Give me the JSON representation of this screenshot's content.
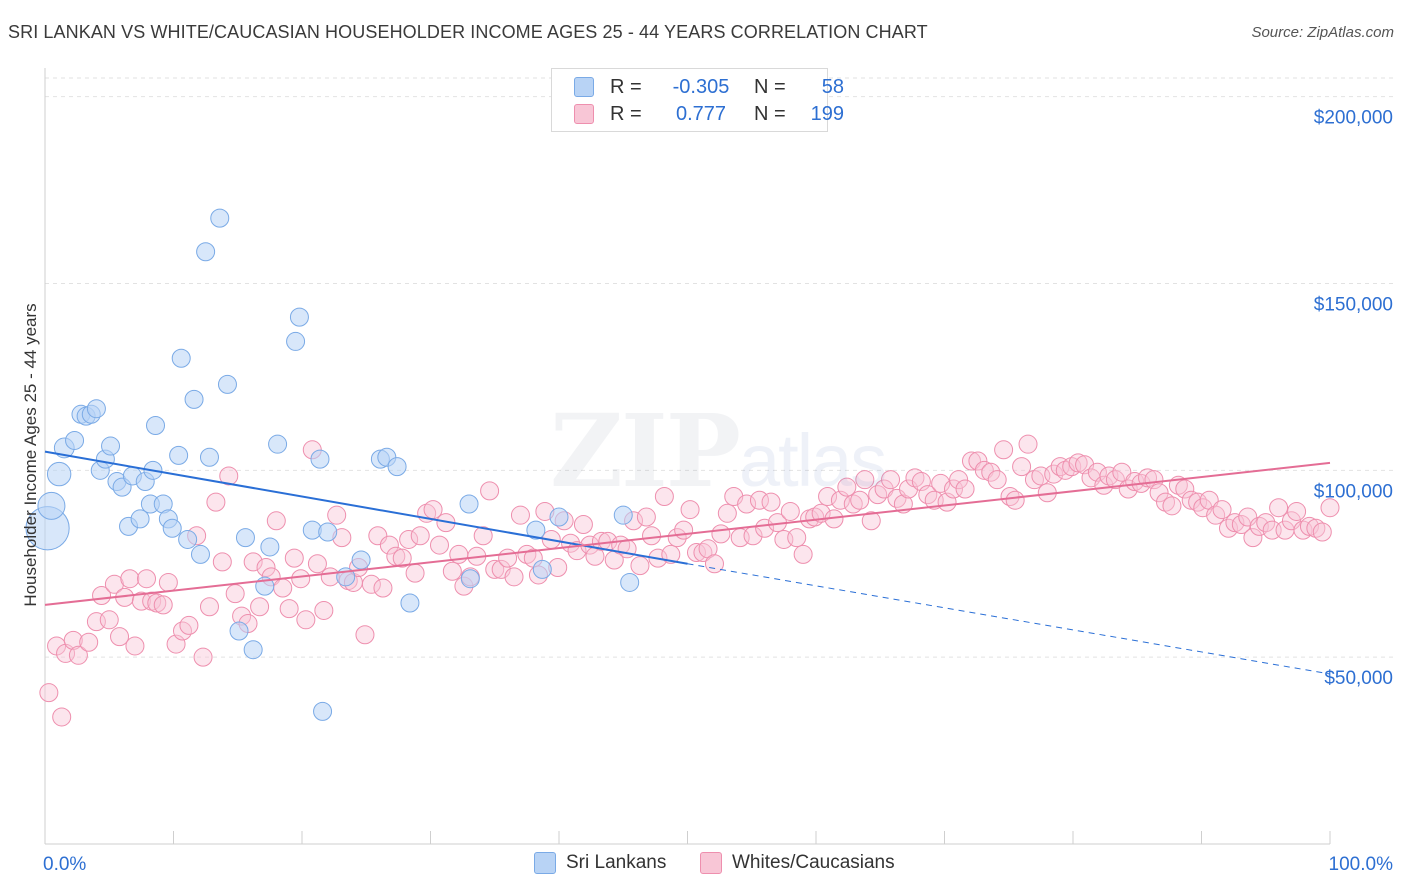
{
  "title": "SRI LANKAN VS WHITE/CAUCASIAN HOUSEHOLDER INCOME AGES 25 - 44 YEARS CORRELATION CHART",
  "source": "Source: ZipAtlas.com",
  "watermark": {
    "main": "ZIP",
    "sub": "atlas"
  },
  "legend": {
    "rows": [
      {
        "r_label": "R =",
        "r_value": "-0.305",
        "n_label": "N =",
        "n_value": "58"
      },
      {
        "r_label": "R =",
        "r_value": "0.777",
        "n_label": "N =",
        "n_value": "199"
      }
    ]
  },
  "bottom_legend": {
    "series1": "Sri Lankans",
    "series2": "Whites/Caucasians"
  },
  "colors": {
    "blue_fill": "#b8d3f5",
    "blue_stroke": "#7aaae6",
    "blue_line": "#2a6fd6",
    "pink_fill": "#f8c6d6",
    "pink_stroke": "#ee8fae",
    "pink_line": "#e46d95",
    "axis_text": "#2d6fd2",
    "grid": "#e2e2e2"
  },
  "chart_data": {
    "type": "scatter",
    "title": "SRI LANKAN VS WHITE/CAUCASIAN HOUSEHOLDER INCOME AGES 25 - 44 YEARS CORRELATION CHART",
    "xlabel": "",
    "ylabel": "Householder Income Ages 25 - 44 years",
    "x_tick_labels": [
      "0.0%",
      "100.0%"
    ],
    "y_tick_labels": [
      "$50,000",
      "$100,000",
      "$150,000",
      "$200,000"
    ],
    "y_ticks": [
      50000,
      100000,
      150000,
      200000
    ],
    "xlim": [
      0,
      100
    ],
    "ylim": [
      0,
      205000
    ],
    "grid": true,
    "legend_position": "top-center",
    "series": [
      {
        "name": "Sri Lankans",
        "r": -0.305,
        "n": 58,
        "trend": {
          "x0": 0,
          "y0": 105000,
          "x1": 50,
          "y1": 75000,
          "dashed_to_x": 100,
          "dashed_to_y": 45500
        },
        "points": [
          [
            0.2,
            84500,
            2.4
          ],
          [
            0.5,
            90500,
            1.5
          ],
          [
            1.1,
            99000,
            1.3
          ],
          [
            1.5,
            106000,
            1.1
          ],
          [
            2.3,
            108000,
            1.0
          ],
          [
            2.8,
            115000,
            1.0
          ],
          [
            3.2,
            114500,
            1.0
          ],
          [
            3.6,
            115000,
            1.0
          ],
          [
            4.0,
            116500,
            1.0
          ],
          [
            4.3,
            100000,
            1.0
          ],
          [
            4.7,
            103000,
            1.0
          ],
          [
            5.1,
            106500,
            1.0
          ],
          [
            5.6,
            97000,
            1.0
          ],
          [
            6.0,
            95500,
            1.0
          ],
          [
            6.5,
            85000,
            1.0
          ],
          [
            6.8,
            98500,
            1.0
          ],
          [
            7.4,
            87000,
            1.0
          ],
          [
            7.8,
            97000,
            1.0
          ],
          [
            8.2,
            91000,
            1.0
          ],
          [
            8.4,
            100000,
            1.0
          ],
          [
            8.6,
            112000,
            1.0
          ],
          [
            9.2,
            91000,
            1.0
          ],
          [
            9.6,
            87000,
            1.0
          ],
          [
            9.9,
            84500,
            1.0
          ],
          [
            10.4,
            104000,
            1.0
          ],
          [
            10.6,
            130000,
            1.0
          ],
          [
            11.1,
            81500,
            1.0
          ],
          [
            11.6,
            119000,
            1.0
          ],
          [
            12.1,
            77500,
            1.0
          ],
          [
            12.5,
            158500,
            1.0
          ],
          [
            12.8,
            103500,
            1.0
          ],
          [
            13.6,
            167500,
            1.0
          ],
          [
            14.2,
            123000,
            1.0
          ],
          [
            15.1,
            57000,
            1.0
          ],
          [
            15.6,
            82000,
            1.0
          ],
          [
            16.2,
            52000,
            1.0
          ],
          [
            17.1,
            69000,
            1.0
          ],
          [
            17.5,
            79500,
            1.0
          ],
          [
            18.1,
            107000,
            1.0
          ],
          [
            19.5,
            134500,
            1.0
          ],
          [
            19.8,
            141000,
            1.0
          ],
          [
            20.8,
            84000,
            1.0
          ],
          [
            21.4,
            103000,
            1.0
          ],
          [
            21.6,
            35500,
            1.0
          ],
          [
            23.4,
            71500,
            1.0
          ],
          [
            24.6,
            76000,
            1.0
          ],
          [
            26.1,
            103000,
            1.0
          ],
          [
            26.6,
            103500,
            1.0
          ],
          [
            27.4,
            101000,
            1.0
          ],
          [
            28.4,
            64500,
            1.0
          ],
          [
            33.0,
            91000,
            1.0
          ],
          [
            33.1,
            71000,
            1.0
          ],
          [
            38.2,
            84000,
            1.0
          ],
          [
            38.7,
            73500,
            1.0
          ],
          [
            40.0,
            87500,
            1.0
          ],
          [
            45.0,
            88000,
            1.0
          ],
          [
            45.5,
            70000,
            1.0
          ],
          [
            22.0,
            83500,
            1.0
          ]
        ]
      },
      {
        "name": "Whites/Caucasians",
        "r": 0.777,
        "n": 199,
        "trend": {
          "x0": 0,
          "y0": 64000,
          "x1": 100,
          "y1": 102000
        },
        "points": [
          [
            0.3,
            40500
          ],
          [
            0.9,
            53000
          ],
          [
            1.3,
            34000
          ],
          [
            1.6,
            51000
          ],
          [
            2.2,
            54500
          ],
          [
            2.6,
            50500
          ],
          [
            3.4,
            54000
          ],
          [
            4.0,
            59500
          ],
          [
            4.4,
            66500
          ],
          [
            5.0,
            60000
          ],
          [
            5.4,
            69500
          ],
          [
            5.8,
            55500
          ],
          [
            6.2,
            66000
          ],
          [
            6.6,
            71000
          ],
          [
            7.0,
            53000
          ],
          [
            7.5,
            65000
          ],
          [
            7.9,
            71000
          ],
          [
            8.3,
            65000
          ],
          [
            8.7,
            64500
          ],
          [
            9.2,
            64000
          ],
          [
            9.6,
            70000
          ],
          [
            10.2,
            53500
          ],
          [
            10.7,
            57000
          ],
          [
            11.2,
            58500
          ],
          [
            11.8,
            82500
          ],
          [
            12.3,
            50000
          ],
          [
            12.8,
            63500
          ],
          [
            13.3,
            91500
          ],
          [
            13.8,
            75500
          ],
          [
            14.3,
            98500
          ],
          [
            14.8,
            67000
          ],
          [
            15.3,
            61000
          ],
          [
            15.8,
            59000
          ],
          [
            16.2,
            75500
          ],
          [
            16.7,
            63500
          ],
          [
            17.2,
            74000
          ],
          [
            17.6,
            71500
          ],
          [
            18.0,
            86500
          ],
          [
            18.5,
            68500
          ],
          [
            19.0,
            63000
          ],
          [
            19.4,
            76500
          ],
          [
            19.9,
            71000
          ],
          [
            20.3,
            60000
          ],
          [
            20.8,
            105500
          ],
          [
            21.2,
            75000
          ],
          [
            21.7,
            62500
          ],
          [
            22.2,
            71500
          ],
          [
            22.7,
            88000
          ],
          [
            23.1,
            82000
          ],
          [
            23.6,
            70500
          ],
          [
            24.0,
            70000
          ],
          [
            24.4,
            74000
          ],
          [
            24.9,
            56000
          ],
          [
            25.4,
            69500
          ],
          [
            25.9,
            82500
          ],
          [
            26.3,
            68500
          ],
          [
            26.8,
            80000
          ],
          [
            27.3,
            77000
          ],
          [
            27.8,
            76500
          ],
          [
            28.3,
            81500
          ],
          [
            28.8,
            72500
          ],
          [
            29.2,
            82500
          ],
          [
            29.7,
            88500
          ],
          [
            30.2,
            89500
          ],
          [
            30.7,
            80000
          ],
          [
            31.2,
            86000
          ],
          [
            31.7,
            73000
          ],
          [
            32.2,
            77500
          ],
          [
            32.6,
            69000
          ],
          [
            33.1,
            71500
          ],
          [
            33.6,
            77000
          ],
          [
            34.1,
            82500
          ],
          [
            34.6,
            94500
          ],
          [
            35.0,
            73500
          ],
          [
            35.5,
            73500
          ],
          [
            36.0,
            76500
          ],
          [
            36.5,
            71500
          ],
          [
            37.0,
            88000
          ],
          [
            37.5,
            77500
          ],
          [
            38.0,
            76500
          ],
          [
            38.4,
            72000
          ],
          [
            38.9,
            89000
          ],
          [
            39.4,
            81500
          ],
          [
            39.9,
            74000
          ],
          [
            40.4,
            86500
          ],
          [
            40.9,
            80500
          ],
          [
            41.4,
            78500
          ],
          [
            41.9,
            85500
          ],
          [
            42.4,
            80000
          ],
          [
            42.8,
            77000
          ],
          [
            43.3,
            81000
          ],
          [
            43.8,
            81000
          ],
          [
            44.3,
            76000
          ],
          [
            44.8,
            80000
          ],
          [
            45.3,
            79000
          ],
          [
            45.8,
            86500
          ],
          [
            46.3,
            74500
          ],
          [
            46.8,
            87500
          ],
          [
            47.2,
            82500
          ],
          [
            47.7,
            76500
          ],
          [
            48.2,
            93000
          ],
          [
            48.7,
            77500
          ],
          [
            49.2,
            82000
          ],
          [
            49.7,
            84000
          ],
          [
            50.2,
            89500
          ],
          [
            50.7,
            78000
          ],
          [
            51.2,
            78000
          ],
          [
            51.6,
            79000
          ],
          [
            52.1,
            75000
          ],
          [
            52.6,
            83000
          ],
          [
            53.1,
            88500
          ],
          [
            53.6,
            93000
          ],
          [
            54.1,
            82000
          ],
          [
            54.6,
            91000
          ],
          [
            55.1,
            82500
          ],
          [
            55.6,
            92000
          ],
          [
            56.0,
            84500
          ],
          [
            56.5,
            91500
          ],
          [
            57.0,
            86000
          ],
          [
            57.5,
            81500
          ],
          [
            58.0,
            89000
          ],
          [
            58.5,
            82000
          ],
          [
            59.0,
            77500
          ],
          [
            59.5,
            87000
          ],
          [
            59.9,
            87500
          ],
          [
            60.4,
            88500
          ],
          [
            60.9,
            93000
          ],
          [
            61.4,
            87000
          ],
          [
            61.9,
            92000
          ],
          [
            62.4,
            95500
          ],
          [
            62.9,
            91000
          ],
          [
            63.4,
            92000
          ],
          [
            63.8,
            97500
          ],
          [
            64.3,
            86500
          ],
          [
            64.8,
            93500
          ],
          [
            65.3,
            95000
          ],
          [
            65.8,
            97500
          ],
          [
            66.3,
            92500
          ],
          [
            66.8,
            91000
          ],
          [
            67.2,
            95000
          ],
          [
            67.7,
            98000
          ],
          [
            68.2,
            97000
          ],
          [
            68.7,
            93500
          ],
          [
            69.2,
            92000
          ],
          [
            69.7,
            96500
          ],
          [
            70.2,
            91500
          ],
          [
            70.7,
            95000
          ],
          [
            71.1,
            97500
          ],
          [
            71.6,
            95000
          ],
          [
            72.1,
            102500
          ],
          [
            72.6,
            102500
          ],
          [
            73.1,
            100000
          ],
          [
            73.6,
            99500
          ],
          [
            74.1,
            97500
          ],
          [
            74.6,
            105500
          ],
          [
            75.1,
            93000
          ],
          [
            75.5,
            92000
          ],
          [
            76.0,
            101000
          ],
          [
            76.5,
            107000
          ],
          [
            77.0,
            97500
          ],
          [
            77.5,
            98500
          ],
          [
            78.0,
            94000
          ],
          [
            78.5,
            99000
          ],
          [
            79.0,
            101000
          ],
          [
            79.4,
            100000
          ],
          [
            79.9,
            101000
          ],
          [
            80.4,
            102000
          ],
          [
            80.9,
            101500
          ],
          [
            81.4,
            98000
          ],
          [
            81.9,
            99500
          ],
          [
            82.4,
            96000
          ],
          [
            82.8,
            98500
          ],
          [
            83.3,
            97500
          ],
          [
            83.8,
            99500
          ],
          [
            84.3,
            95000
          ],
          [
            84.8,
            97000
          ],
          [
            85.3,
            96500
          ],
          [
            85.8,
            98000
          ],
          [
            86.3,
            97500
          ],
          [
            86.7,
            94000
          ],
          [
            87.2,
            91500
          ],
          [
            87.7,
            90500
          ],
          [
            88.2,
            96000
          ],
          [
            88.7,
            95000
          ],
          [
            89.2,
            92000
          ],
          [
            89.7,
            91500
          ],
          [
            90.1,
            90000
          ],
          [
            90.6,
            92000
          ],
          [
            91.1,
            88000
          ],
          [
            91.6,
            89500
          ],
          [
            92.1,
            84500
          ],
          [
            92.6,
            86000
          ],
          [
            93.1,
            85500
          ],
          [
            93.6,
            87500
          ],
          [
            94.0,
            82000
          ],
          [
            94.5,
            85000
          ],
          [
            95.0,
            86000
          ],
          [
            95.5,
            84000
          ],
          [
            96.0,
            90000
          ],
          [
            96.5,
            84000
          ],
          [
            97.0,
            86500
          ],
          [
            97.4,
            89000
          ],
          [
            97.9,
            84000
          ],
          [
            98.4,
            85000
          ],
          [
            98.9,
            84500
          ],
          [
            99.4,
            83500
          ],
          [
            100.0,
            90000
          ]
        ]
      }
    ]
  }
}
